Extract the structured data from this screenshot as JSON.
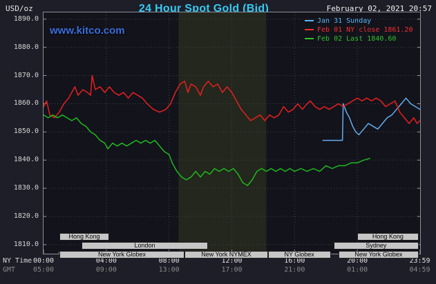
{
  "header": {
    "units_label": "USD/oz",
    "title": "24 Hour Spot Gold (Bid)",
    "datetime": "February 02, 2021 20:57"
  },
  "watermark": "www.kitco.com",
  "colors": {
    "page_bg": "#1e1e28",
    "plot_bg": "#13131b",
    "band": "#23271d",
    "grid": "#45454f",
    "frame": "#8f8f98",
    "tick": "#9a9aa2",
    "title_text": "#35cbf2",
    "watermark_text": "#3a6ede",
    "axis_text": "#d4d4d4",
    "gmt_text": "#8a8a8a",
    "session_fill": "#c6c6c6",
    "session_text": "#000000"
  },
  "chart_data": {
    "type": "line",
    "title": "24 Hour Spot Gold (Bid)",
    "ylabel": "USD/oz",
    "ylim": [
      1810,
      1890
    ],
    "yticks": [
      1890,
      1880,
      1870,
      1860,
      1850,
      1840,
      1830,
      1820,
      1810
    ],
    "y_view": [
      1806.8,
      1892.4
    ],
    "x_view_hours": [
      0,
      24
    ],
    "grid_hours": [
      4,
      8,
      12,
      16,
      20
    ],
    "highlight_band": {
      "start_hour": 8.6,
      "end_hour": 14.2,
      "color": "#23271d"
    },
    "axis_row_labels": {
      "ny": "NY Time",
      "gmt": "GMT"
    },
    "x_ticks": [
      {
        "hour": 0,
        "ny": "00:00",
        "gmt": "05:00"
      },
      {
        "hour": 4,
        "ny": "04:00",
        "gmt": "09:00"
      },
      {
        "hour": 8,
        "ny": "08:00",
        "gmt": "13:00"
      },
      {
        "hour": 12,
        "ny": "12:00",
        "gmt": "17:00"
      },
      {
        "hour": 16,
        "ny": "16:00",
        "gmt": "21:00"
      },
      {
        "hour": 20,
        "ny": "20:00",
        "gmt": "01:00"
      },
      {
        "hour": 23.98,
        "ny": "23:59",
        "gmt": "04:59"
      }
    ],
    "legend": [
      {
        "label": "Jan 31 Sunday",
        "color": "#5ab4f5"
      },
      {
        "label": "Feb 01 NY close 1861.20",
        "color": "#f23030"
      },
      {
        "label": "Feb 02 Last 1840.60",
        "color": "#2ec22e"
      }
    ],
    "series": [
      {
        "name": "Jan 31 Sunday",
        "color": "#64aef0",
        "points": [
          [
            17.8,
            1847
          ],
          [
            19.05,
            1847
          ],
          [
            19.1,
            1860
          ],
          [
            19.3,
            1857
          ],
          [
            19.5,
            1855
          ],
          [
            19.7,
            1852
          ],
          [
            19.9,
            1850
          ],
          [
            20.1,
            1849
          ],
          [
            20.4,
            1851
          ],
          [
            20.7,
            1853
          ],
          [
            21,
            1852
          ],
          [
            21.3,
            1851
          ],
          [
            21.6,
            1853
          ],
          [
            21.9,
            1855
          ],
          [
            22.2,
            1856
          ],
          [
            22.5,
            1858
          ],
          [
            22.8,
            1860
          ],
          [
            23.1,
            1862
          ],
          [
            23.4,
            1860
          ],
          [
            23.7,
            1859
          ],
          [
            24,
            1858
          ]
        ]
      },
      {
        "name": "Feb 01",
        "close": 1861.2,
        "color": "#e82020",
        "points": [
          [
            0,
            1859
          ],
          [
            0.2,
            1861
          ],
          [
            0.4,
            1856
          ],
          [
            0.7,
            1855
          ],
          [
            1,
            1857
          ],
          [
            1.3,
            1860
          ],
          [
            1.6,
            1862
          ],
          [
            2,
            1866
          ],
          [
            2.2,
            1863
          ],
          [
            2.5,
            1865
          ],
          [
            2.8,
            1864
          ],
          [
            3,
            1863
          ],
          [
            3.1,
            1870
          ],
          [
            3.3,
            1865
          ],
          [
            3.6,
            1866
          ],
          [
            3.9,
            1864
          ],
          [
            4.2,
            1866
          ],
          [
            4.5,
            1864
          ],
          [
            4.8,
            1863
          ],
          [
            5.1,
            1864
          ],
          [
            5.4,
            1862
          ],
          [
            5.7,
            1864
          ],
          [
            6,
            1863
          ],
          [
            6.3,
            1862
          ],
          [
            6.6,
            1860
          ],
          [
            7,
            1858
          ],
          [
            7.4,
            1857
          ],
          [
            7.8,
            1858
          ],
          [
            8.1,
            1860
          ],
          [
            8.4,
            1864
          ],
          [
            8.7,
            1867
          ],
          [
            9,
            1868
          ],
          [
            9.2,
            1864
          ],
          [
            9.4,
            1867
          ],
          [
            9.7,
            1866
          ],
          [
            10,
            1863
          ],
          [
            10.2,
            1866
          ],
          [
            10.5,
            1868
          ],
          [
            10.8,
            1866
          ],
          [
            11.1,
            1867
          ],
          [
            11.4,
            1864
          ],
          [
            11.7,
            1866
          ],
          [
            12,
            1864
          ],
          [
            12.3,
            1861
          ],
          [
            12.6,
            1858
          ],
          [
            12.9,
            1856
          ],
          [
            13.2,
            1854
          ],
          [
            13.5,
            1855
          ],
          [
            13.8,
            1856
          ],
          [
            14.1,
            1854
          ],
          [
            14.4,
            1856
          ],
          [
            14.7,
            1855
          ],
          [
            15,
            1856
          ],
          [
            15.3,
            1859
          ],
          [
            15.6,
            1857
          ],
          [
            15.9,
            1858
          ],
          [
            16.2,
            1860
          ],
          [
            16.5,
            1858
          ],
          [
            16.8,
            1860
          ],
          [
            17,
            1861
          ],
          [
            17.3,
            1859
          ],
          [
            17.6,
            1858
          ],
          [
            17.9,
            1859
          ],
          [
            18.2,
            1858
          ],
          [
            18.5,
            1859
          ],
          [
            18.8,
            1860
          ],
          [
            19.1,
            1859
          ],
          [
            19.4,
            1860
          ],
          [
            19.7,
            1861
          ],
          [
            20,
            1862
          ],
          [
            20.3,
            1861
          ],
          [
            20.6,
            1862
          ],
          [
            20.9,
            1861
          ],
          [
            21.2,
            1862
          ],
          [
            21.5,
            1861
          ],
          [
            21.8,
            1859
          ],
          [
            22.1,
            1860
          ],
          [
            22.4,
            1861
          ],
          [
            22.7,
            1857
          ],
          [
            23,
            1855
          ],
          [
            23.3,
            1853
          ],
          [
            23.6,
            1855
          ],
          [
            23.8,
            1853
          ],
          [
            24,
            1854
          ]
        ]
      },
      {
        "name": "Feb 02",
        "last": 1840.6,
        "color": "#1fba1f",
        "points": [
          [
            0,
            1856
          ],
          [
            0.3,
            1855
          ],
          [
            0.6,
            1856
          ],
          [
            0.9,
            1855
          ],
          [
            1.2,
            1856
          ],
          [
            1.5,
            1855
          ],
          [
            1.8,
            1854
          ],
          [
            2.1,
            1855
          ],
          [
            2.4,
            1853
          ],
          [
            2.7,
            1852
          ],
          [
            3,
            1850
          ],
          [
            3.3,
            1849
          ],
          [
            3.6,
            1847
          ],
          [
            3.9,
            1846
          ],
          [
            4.1,
            1844
          ],
          [
            4.4,
            1846
          ],
          [
            4.7,
            1845
          ],
          [
            5,
            1846
          ],
          [
            5.3,
            1845
          ],
          [
            5.6,
            1846
          ],
          [
            5.9,
            1847
          ],
          [
            6.2,
            1846
          ],
          [
            6.5,
            1847
          ],
          [
            6.8,
            1846
          ],
          [
            7.1,
            1847
          ],
          [
            7.4,
            1845
          ],
          [
            7.7,
            1843
          ],
          [
            8,
            1842
          ],
          [
            8.2,
            1839
          ],
          [
            8.5,
            1836
          ],
          [
            8.8,
            1834
          ],
          [
            9.1,
            1833
          ],
          [
            9.4,
            1834
          ],
          [
            9.7,
            1836
          ],
          [
            10,
            1834
          ],
          [
            10.3,
            1836
          ],
          [
            10.6,
            1835
          ],
          [
            10.9,
            1837
          ],
          [
            11.2,
            1836
          ],
          [
            11.5,
            1837
          ],
          [
            11.8,
            1836
          ],
          [
            12.1,
            1837
          ],
          [
            12.4,
            1835
          ],
          [
            12.7,
            1832
          ],
          [
            13,
            1831
          ],
          [
            13.3,
            1833
          ],
          [
            13.6,
            1836
          ],
          [
            13.9,
            1837
          ],
          [
            14.2,
            1836
          ],
          [
            14.5,
            1837
          ],
          [
            14.8,
            1836
          ],
          [
            15.1,
            1837
          ],
          [
            15.4,
            1836
          ],
          [
            15.7,
            1837
          ],
          [
            16,
            1836
          ],
          [
            16.4,
            1837
          ],
          [
            16.8,
            1836
          ],
          [
            17.2,
            1837
          ],
          [
            17.6,
            1836
          ],
          [
            18,
            1838
          ],
          [
            18.4,
            1837
          ],
          [
            18.8,
            1838
          ],
          [
            19.2,
            1838
          ],
          [
            19.6,
            1839
          ],
          [
            20,
            1839
          ],
          [
            20.4,
            1840
          ],
          [
            20.8,
            1840.6
          ]
        ]
      }
    ],
    "sessions": {
      "rows": [
        {
          "bars": [
            {
              "label": "Hong Kong",
              "start": 1.0,
              "end": 4.2
            },
            {
              "label": "Hong Kong",
              "start": 20.0,
              "end": 23.9
            }
          ]
        },
        {
          "bars": [
            {
              "label": "London",
              "start": 2.4,
              "end": 10.5
            },
            {
              "label": "Sydney",
              "start": 18.5,
              "end": 23.9
            }
          ]
        },
        {
          "bars": [
            {
              "label": "New York Globex",
              "start": 1.0,
              "end": 9.0
            },
            {
              "label": "New York NYMEX",
              "start": 9.0,
              "end": 14.3
            },
            {
              "label": "NY Globex",
              "start": 14.3,
              "end": 18.3
            },
            {
              "label": "New York Globex",
              "start": 18.8,
              "end": 23.9
            }
          ]
        }
      ]
    }
  }
}
